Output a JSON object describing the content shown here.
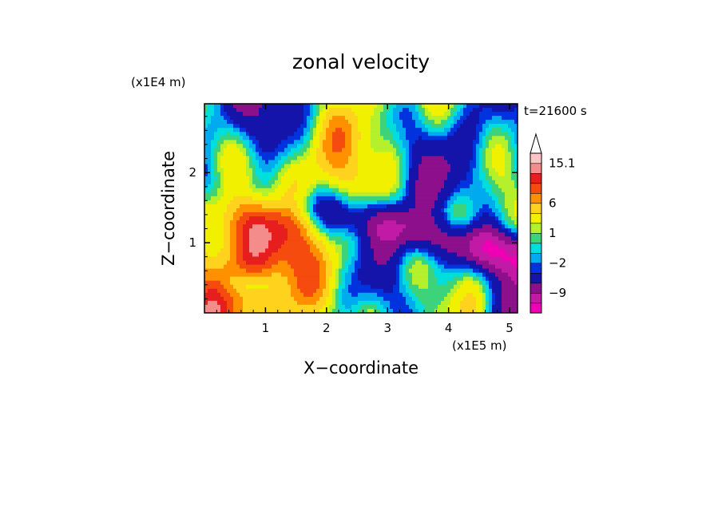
{
  "chart_data": {
    "type": "heatmap",
    "title": "zonal velocity",
    "xlabel": "X−coordinate",
    "ylabel": "Z−coordinate",
    "x_unit": "(x1E5 m)",
    "y_unit": "(x1E4 m)",
    "time_label": "t=21600 s",
    "xlim": [
      0,
      5.13
    ],
    "ylim": [
      0,
      2.98
    ],
    "x_ticks": [
      1,
      2,
      3,
      4,
      5
    ],
    "y_ticks": [
      1,
      2
    ],
    "x_tick_labels": [
      "1",
      "2",
      "3",
      "4",
      "5"
    ],
    "y_tick_labels": [
      "1",
      "2"
    ],
    "colorbar": {
      "levels": [
        -15,
        -12,
        -9,
        -6,
        -3,
        -2,
        -1,
        0,
        1,
        2,
        4,
        6,
        8,
        10,
        12,
        15.1
      ],
      "labels": [
        "15.1",
        "6",
        "1",
        "−2",
        "−9"
      ],
      "label_values": [
        15.1,
        6,
        1,
        -2,
        -9
      ],
      "colors": [
        "#f000b4",
        "#c01aa6",
        "#8c0f8c",
        "#1414aa",
        "#0033dd",
        "#00aaee",
        "#00dddd",
        "#3cd37a",
        "#b4f02b",
        "#f0f000",
        "#ffd21e",
        "#ff9100",
        "#f54b0f",
        "#e61e1e",
        "#f58c8c",
        "#ffc4c4"
      ],
      "extend_max": true
    }
  }
}
